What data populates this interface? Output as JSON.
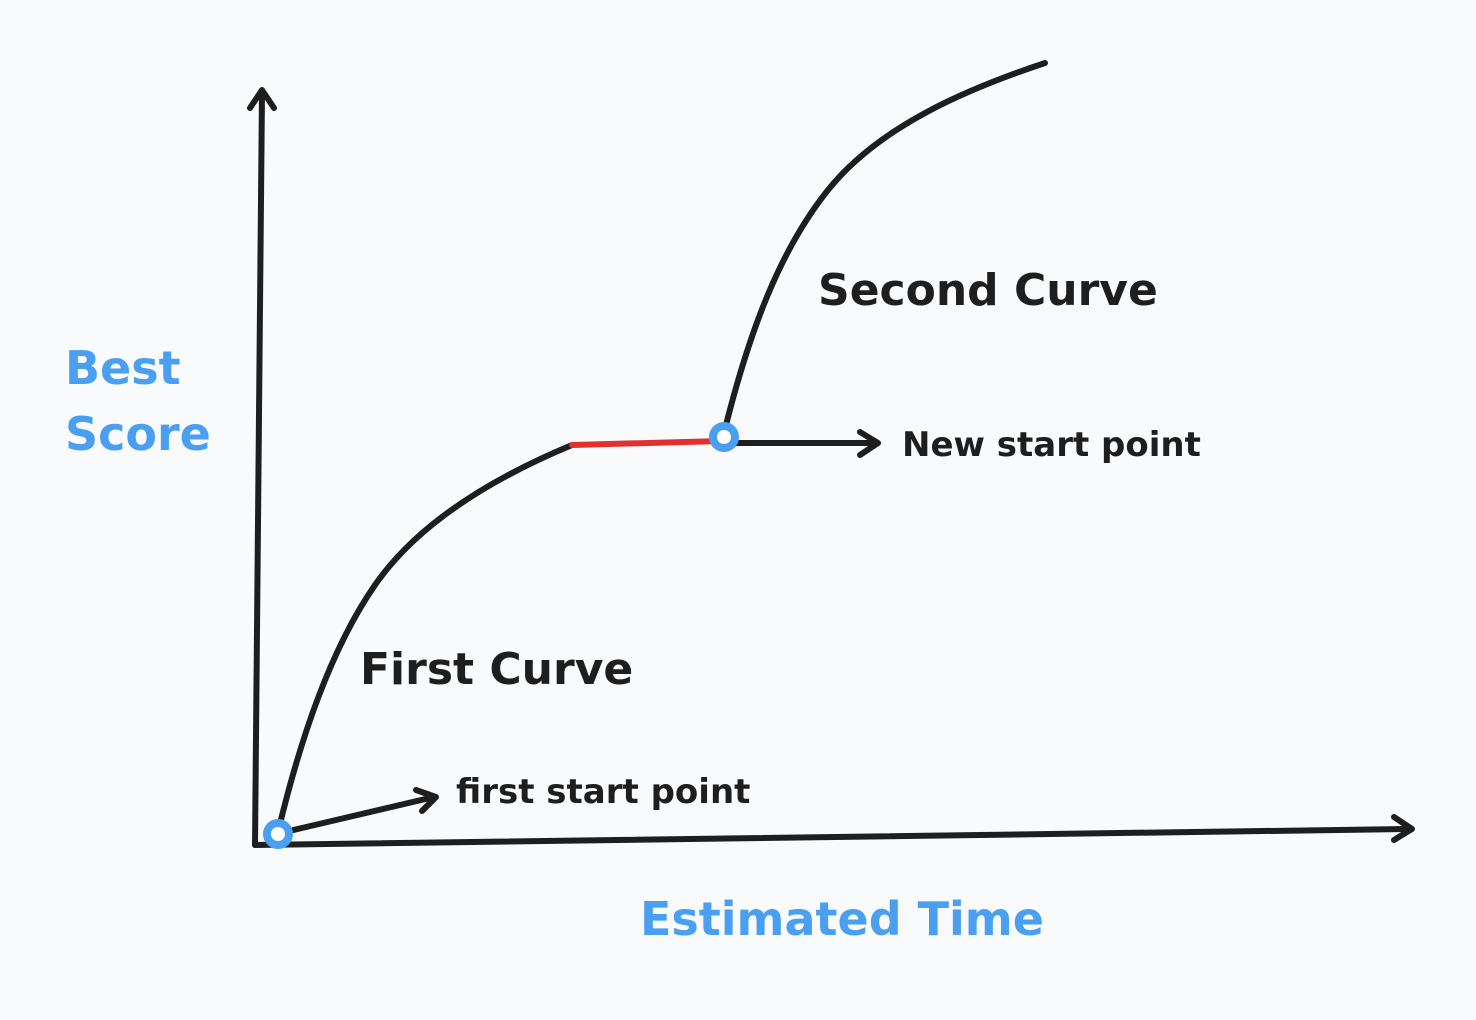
{
  "diagram": {
    "y_axis_label_line1": "Best",
    "y_axis_label_line2": "Score",
    "x_axis_label": "Estimated Time",
    "first_curve_label": "First Curve",
    "second_curve_label": "Second Curve",
    "first_start_label": "first start point",
    "new_start_label": "New start point"
  },
  "colors": {
    "ink": "#1e1e1e",
    "accent_blue": "#4a9ff0",
    "plateau_red": "#e03131",
    "background": "#f9fafb"
  }
}
